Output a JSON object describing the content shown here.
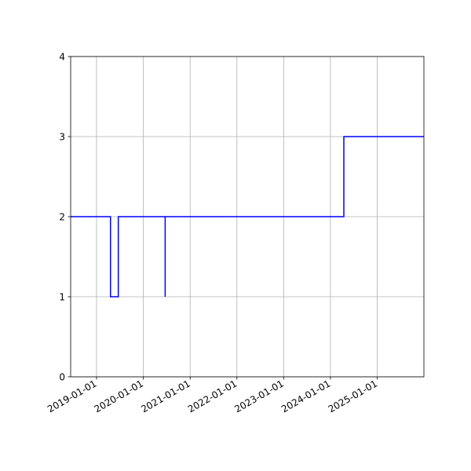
{
  "chart_data": {
    "type": "line",
    "step": true,
    "title": "",
    "xlabel": "",
    "ylabel": "",
    "x_axis_type": "date",
    "xlim": [
      "2018-06-13",
      "2025-12-31"
    ],
    "ylim": [
      0,
      4
    ],
    "grid": true,
    "legend": "none",
    "x_ticks": [
      "2019-01-01",
      "2020-01-01",
      "2021-01-01",
      "2022-01-01",
      "2023-01-01",
      "2024-01-01",
      "2025-01-01"
    ],
    "x_tick_labels": [
      "2019-01-01",
      "2020-01-01",
      "2021-01-01",
      "2022-01-01",
      "2023-01-01",
      "2024-01-01",
      "2025-01-01"
    ],
    "y_ticks": [
      0,
      1,
      2,
      3,
      4
    ],
    "y_tick_labels": [
      "0",
      "1",
      "2",
      "3",
      "4"
    ],
    "series": [
      {
        "color": "#0000ff",
        "x": [
          "2018-06-13",
          "2019-04-20",
          "2019-04-20",
          "2019-06-20",
          "2019-06-20",
          "2020-06-20",
          "2020-06-20",
          "2020-06-20",
          "2020-06-20",
          "2024-04-15",
          "2024-04-15",
          "2025-12-31"
        ],
        "y": [
          2,
          2,
          1,
          1,
          2,
          2,
          1,
          1,
          2,
          2,
          3,
          3
        ]
      }
    ]
  }
}
